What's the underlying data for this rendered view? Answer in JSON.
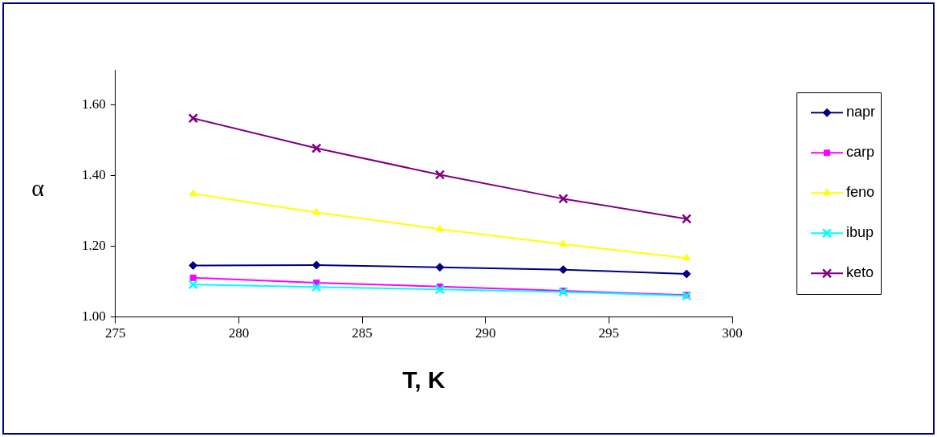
{
  "chart_data": {
    "type": "line",
    "xlabel": "T, K",
    "ylabel": "α",
    "x": [
      278.15,
      283.15,
      288.15,
      293.15,
      298.15
    ],
    "series": [
      {
        "name": "napr",
        "color": "#000080",
        "marker": "diamond",
        "values": [
          1.146,
          1.147,
          1.141,
          1.134,
          1.122
        ]
      },
      {
        "name": "carp",
        "color": "#ff00ff",
        "marker": "square",
        "values": [
          1.111,
          1.097,
          1.086,
          1.074,
          1.062
        ]
      },
      {
        "name": "feno",
        "color": "#ffff00",
        "marker": "triangle",
        "values": [
          1.349,
          1.296,
          1.249,
          1.206,
          1.167
        ]
      },
      {
        "name": "ibup",
        "color": "#00ffff",
        "marker": "cross",
        "values": [
          1.092,
          1.085,
          1.078,
          1.071,
          1.06
        ]
      },
      {
        "name": "keto",
        "color": "#800080",
        "marker": "cross",
        "values": [
          1.563,
          1.478,
          1.403,
          1.335,
          1.278
        ]
      }
    ],
    "xlim": [
      275,
      300
    ],
    "xticks": [
      275,
      280,
      285,
      290,
      295,
      300
    ],
    "ylim": [
      1.0,
      1.7
    ],
    "yticks": [
      {
        "value": 1,
        "label": "1.00"
      },
      {
        "value": 1.2,
        "label": "1.20"
      },
      {
        "value": 1.4,
        "label": "1.40"
      },
      {
        "value": 1.6,
        "label": "1.60"
      }
    ],
    "grid": false,
    "legend": "right",
    "line_style": "solid"
  }
}
